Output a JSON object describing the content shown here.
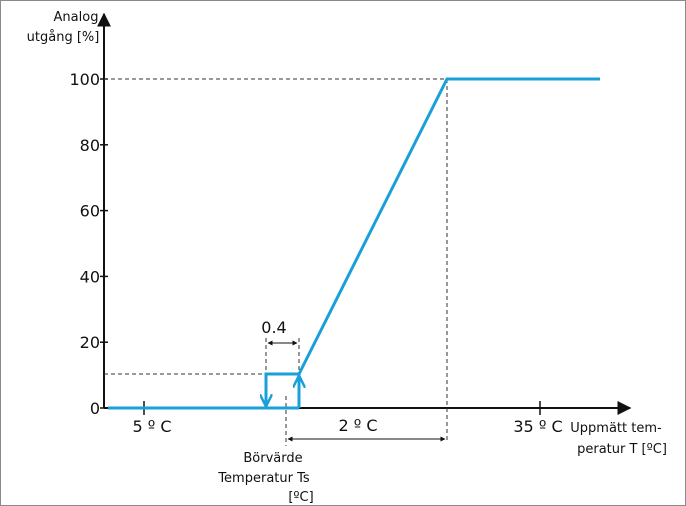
{
  "labels": {
    "y_axis_line1": "Analog",
    "y_axis_line2": "utgång [%]",
    "x_axis_line1": "Uppmätt tem-",
    "x_axis_line2": "peratur T [ºC]",
    "setpoint_line1": "Börvärde",
    "setpoint_line2": "Temperatur Ts",
    "setpoint_line3": "[ºC]",
    "hysteresis": "0.4",
    "span": "2 º C",
    "x_tick_left": "5 º C",
    "x_tick_right": "35 º C"
  },
  "colors": {
    "curve": "#1aa0d8",
    "axis": "#111111",
    "guide": "#333333"
  },
  "chart_data": {
    "type": "line",
    "yticks": [
      0,
      20,
      40,
      60,
      80,
      100
    ],
    "ylim": [
      0,
      100
    ],
    "series": [
      {
        "values": [
          [
            0,
            0
          ],
          [
            1,
            10
          ],
          [
            2,
            10
          ],
          [
            3,
            100
          ],
          [
            4,
            100
          ]
        ]
      }
    ]
  }
}
